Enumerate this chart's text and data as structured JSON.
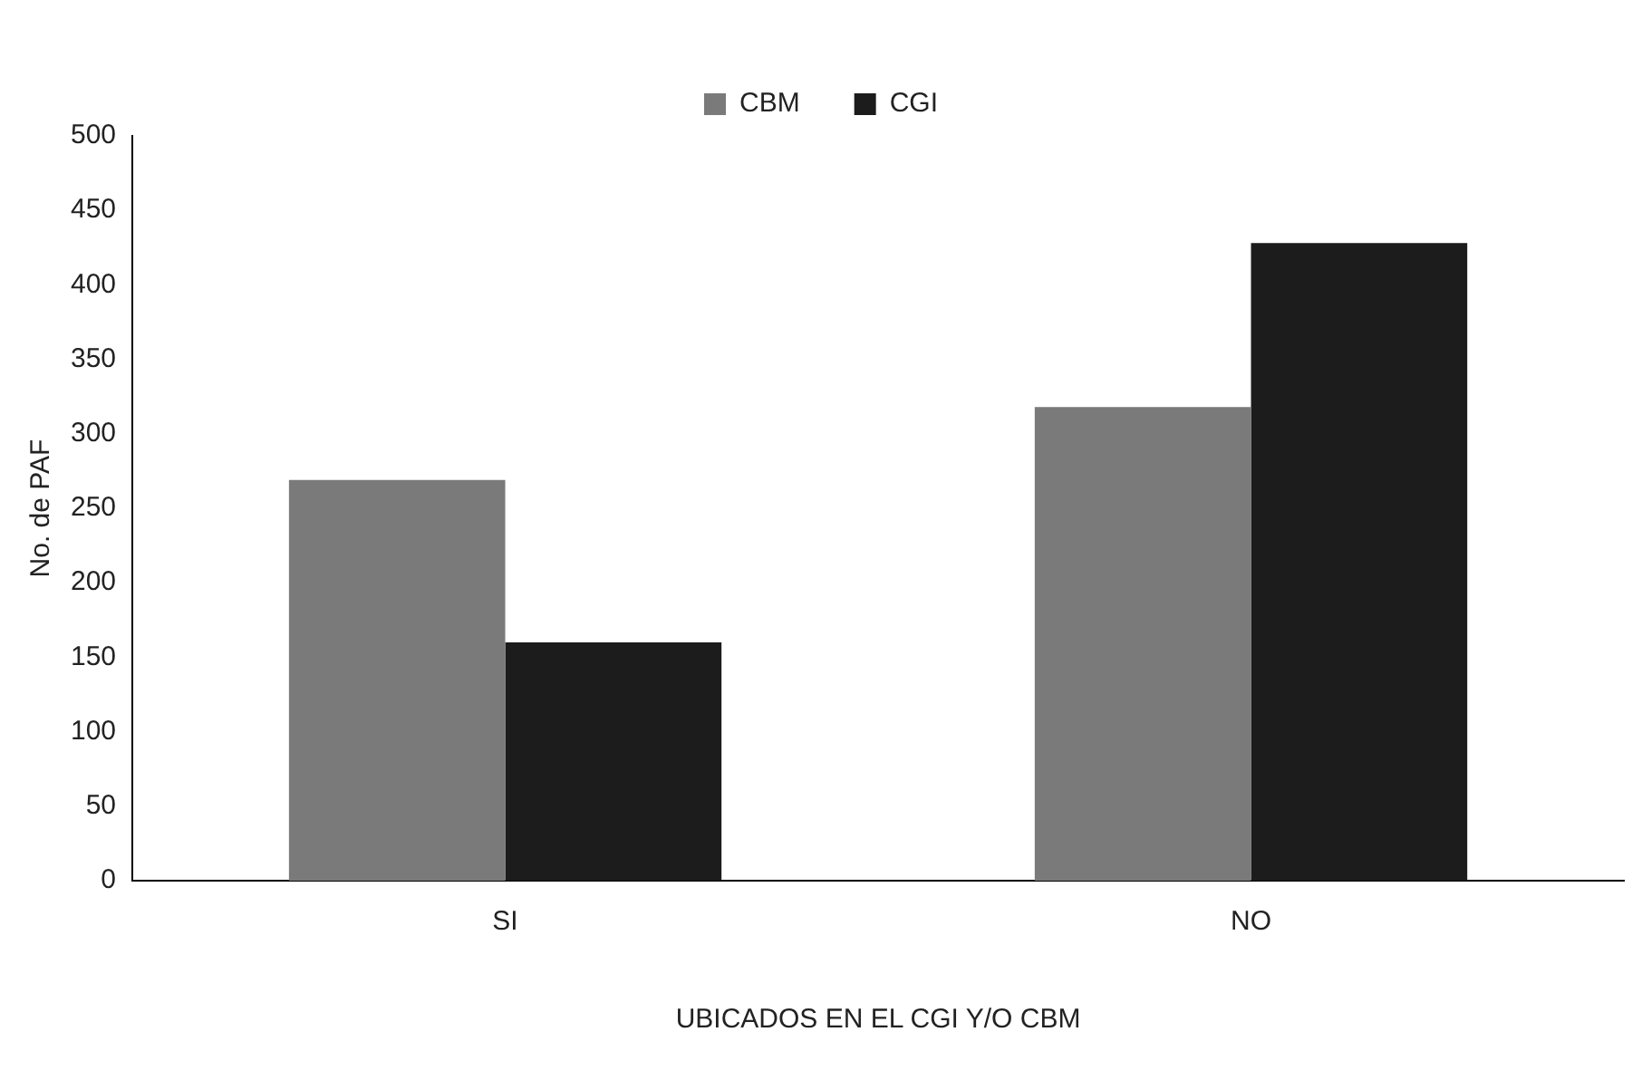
{
  "chart_data": {
    "type": "bar",
    "xlabel": "UBICADOS EN EL CGI Y/O CBM",
    "ylabel": "No. de PAF",
    "categories": [
      "SI",
      "NO"
    ],
    "series": [
      {
        "name": "CBM",
        "color": "#7a7a7a",
        "values": [
          269,
          318
        ]
      },
      {
        "name": "CGI",
        "color": "#1c1c1c",
        "values": [
          160,
          428
        ]
      }
    ],
    "ylim": [
      0,
      500
    ],
    "yticks": [
      0,
      50,
      100,
      150,
      200,
      250,
      300,
      350,
      400,
      450,
      500
    ],
    "grid": false,
    "legend": "top"
  }
}
